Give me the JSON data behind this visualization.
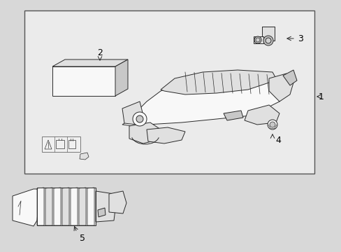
{
  "bg_color": "#d8d8d8",
  "box_face": "#e8e8e8",
  "white": "#f8f8f8",
  "line_color": "#2a2a2a",
  "gray1": "#e0e0e0",
  "gray2": "#c8c8c8",
  "gray3": "#d0d0d0",
  "label_fs": 9,
  "lw": 0.7
}
